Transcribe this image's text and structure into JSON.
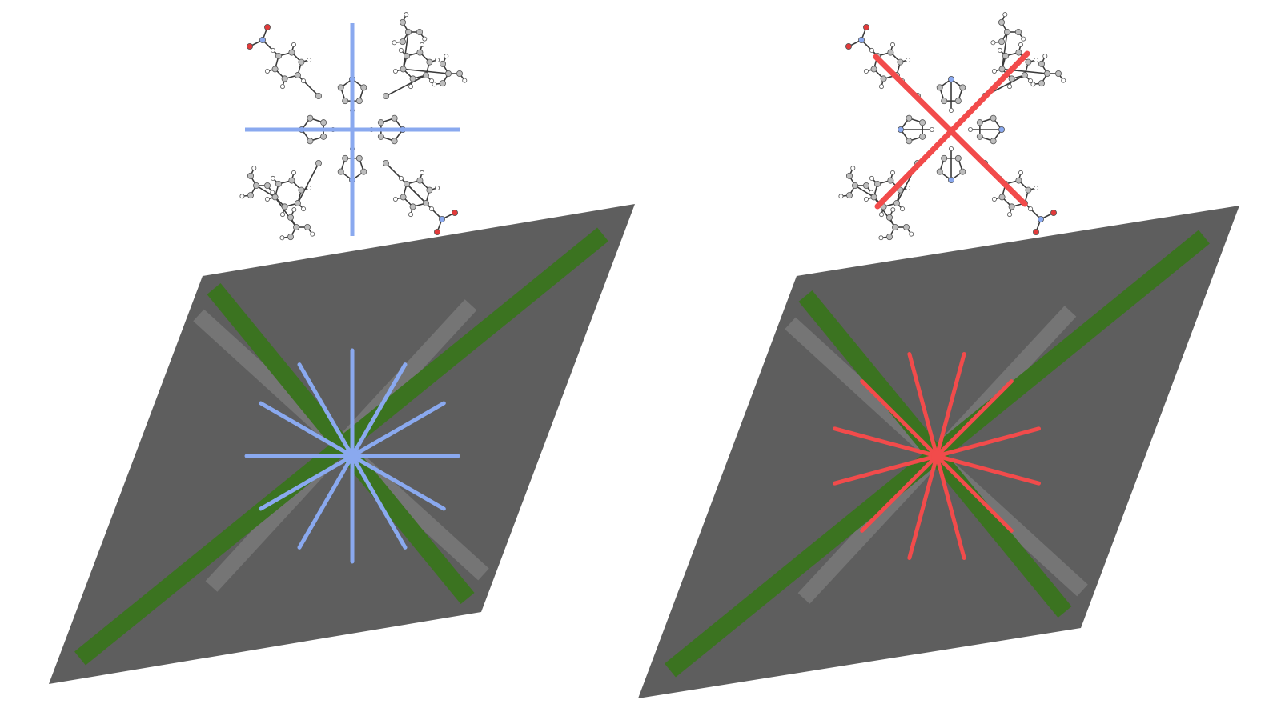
{
  "colors": {
    "background": "#ffffff",
    "substrate": "#5e5e5e",
    "substrate_axis_primary": "#3b7320",
    "substrate_axis_secondary": "#7a7a7a",
    "left_molecule_axes": "#8aa9ef",
    "right_molecule_axes": "#f24b4b",
    "bond": "#3a3a3a",
    "carbon": "#bdbdbd",
    "hydrogen": "#ffffff",
    "nitrogen": "#8aa9ef",
    "oxygen": "#e23a3a"
  },
  "panels": [
    {
      "name": "left",
      "molecule_orientation": "axes-aligned",
      "axis_color_key": "left_molecule_axes",
      "starburst_line_count": 6,
      "starburst_rotation_deg": 0
    },
    {
      "name": "right",
      "molecule_orientation": "axes-diagonal",
      "axis_color_key": "right_molecule_axes",
      "starburst_line_count": 6,
      "starburst_rotation_deg": 15
    }
  ]
}
